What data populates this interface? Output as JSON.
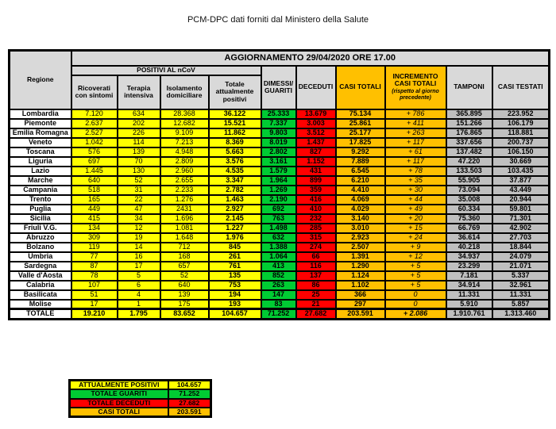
{
  "title": "PCM-DPC dati forniti dal Ministero della Salute",
  "colors": {
    "yellow": "#FFFF00",
    "green": "#00CC33",
    "red": "#FF0000",
    "orange": "#FFC000",
    "header-gray": "#D9D9D9",
    "cell-gray": "#BFBFBF",
    "border": "#000000"
  },
  "header": {
    "banner": "AGGIORNAMENTO 29/04/2020 ORE 17.00",
    "regione": "Regione",
    "positivi_group": "POSITIVI AL nCoV",
    "ricoverati": "Ricoverati con sintomi",
    "terapia": "Terapia intensiva",
    "isolamento": "Isolamento domiciliare",
    "totale_positivi": "Totale attualmente positivi",
    "dimessi": "DIMESSI/ GUARITI",
    "deceduti": "DECEDUTI",
    "casi_totali": "CASI TOTALI",
    "incremento": "INCREMENTO CASI TOTALI",
    "incremento_note": "(rispetto al giorno precedente)",
    "tamponi": "TAMPONI",
    "casi_testati": "CASI TESTATI"
  },
  "chart_data": {
    "type": "table",
    "title": "AGGIORNAMENTO 29/04/2020 ORE 17.00",
    "group_header": "POSITIVI AL nCoV",
    "columns": [
      "Regione",
      "Ricoverati con sintomi",
      "Terapia intensiva",
      "Isolamento domiciliare",
      "Totale attualmente positivi",
      "DIMESSI/GUARITI",
      "DECEDUTI",
      "CASI TOTALI",
      "INCREMENTO CASI TOTALI (rispetto al giorno precedente)",
      "TAMPONI",
      "CASI TESTATI"
    ],
    "rows": [
      [
        "Lombardia",
        "7.120",
        "634",
        "28.368",
        "36.122",
        "25.333",
        "13.679",
        "75.134",
        "+ 786",
        "365.895",
        "223.952"
      ],
      [
        "Piemonte",
        "2.637",
        "202",
        "12.682",
        "15.521",
        "7.337",
        "3.003",
        "25.861",
        "+ 411",
        "151.266",
        "106.179"
      ],
      [
        "Emilia Romagna",
        "2.527",
        "226",
        "9.109",
        "11.862",
        "9.803",
        "3.512",
        "25.177",
        "+ 263",
        "176.865",
        "118.881"
      ],
      [
        "Veneto",
        "1.042",
        "114",
        "7.213",
        "8.369",
        "8.019",
        "1.437",
        "17.825",
        "+ 117",
        "337.656",
        "200.737"
      ],
      [
        "Toscana",
        "576",
        "139",
        "4.948",
        "5.663",
        "2.802",
        "827",
        "9.292",
        "+ 61",
        "137.482",
        "106.150"
      ],
      [
        "Liguria",
        "697",
        "70",
        "2.809",
        "3.576",
        "3.161",
        "1.152",
        "7.889",
        "+ 117",
        "47.220",
        "30.669"
      ],
      [
        "Lazio",
        "1.445",
        "130",
        "2.960",
        "4.535",
        "1.579",
        "431",
        "6.545",
        "+ 78",
        "133.503",
        "103.435"
      ],
      [
        "Marche",
        "640",
        "52",
        "2.655",
        "3.347",
        "1.964",
        "899",
        "6.210",
        "+ 35",
        "55.905",
        "37.877"
      ],
      [
        "Campania",
        "518",
        "31",
        "2.233",
        "2.782",
        "1.269",
        "359",
        "4.410",
        "+ 30",
        "73.094",
        "43.449"
      ],
      [
        "Trento",
        "165",
        "22",
        "1.276",
        "1.463",
        "2.190",
        "416",
        "4.069",
        "+ 44",
        "35.008",
        "20.944"
      ],
      [
        "Puglia",
        "449",
        "47",
        "2431",
        "2.927",
        "692",
        "410",
        "4.029",
        "+ 49",
        "60.334",
        "59.801"
      ],
      [
        "Sicilia",
        "415",
        "34",
        "1.696",
        "2.145",
        "763",
        "232",
        "3.140",
        "+ 20",
        "75.360",
        "71.301"
      ],
      [
        "Friuli V.G.",
        "134",
        "12",
        "1.081",
        "1.227",
        "1.498",
        "285",
        "3.010",
        "+ 15",
        "66.769",
        "42.902"
      ],
      [
        "Abruzzo",
        "309",
        "19",
        "1.648",
        "1.976",
        "632",
        "315",
        "2.923",
        "+ 24",
        "36.614",
        "27.703"
      ],
      [
        "Bolzano",
        "119",
        "14",
        "712",
        "845",
        "1.388",
        "274",
        "2.507",
        "+ 9",
        "40.218",
        "18.844"
      ],
      [
        "Umbria",
        "77",
        "16",
        "168",
        "261",
        "1.064",
        "66",
        "1.391",
        "+ 12",
        "34.937",
        "24.079"
      ],
      [
        "Sardegna",
        "87",
        "17",
        "657",
        "761",
        "413",
        "116",
        "1.290",
        "+ 5",
        "23.299",
        "21.071"
      ],
      [
        "Valle d'Aosta",
        "78",
        "5",
        "52",
        "135",
        "852",
        "137",
        "1.124",
        "+ 5",
        "7.181",
        "5.337"
      ],
      [
        "Calabria",
        "107",
        "6",
        "640",
        "753",
        "263",
        "86",
        "1.102",
        "+ 5",
        "34.914",
        "32.961"
      ],
      [
        "Basilicata",
        "51",
        "4",
        "139",
        "194",
        "147",
        "25",
        "366",
        "0",
        "11.331",
        "11.331"
      ],
      [
        "Molise",
        "17",
        "1",
        "175",
        "193",
        "83",
        "21",
        "297",
        "0",
        "5.910",
        "5.857"
      ]
    ],
    "total_row": [
      "TOTALE",
      "19.210",
      "1.795",
      "83.652",
      "104.657",
      "71.252",
      "27.682",
      "203.591",
      "+ 2.086",
      "1.910.761",
      "1.313.460"
    ]
  },
  "summary": [
    {
      "label": "ATTUALMENTE POSITIVI",
      "value": "104.657",
      "color_key": "yellow"
    },
    {
      "label": "TOTALE GUARITI",
      "value": "71.252",
      "color_key": "green"
    },
    {
      "label": "TOTALE DECEDUTI",
      "value": "27.682",
      "color_key": "red"
    },
    {
      "label": "CASI TOTALI",
      "value": "203.591",
      "color_key": "orange"
    }
  ]
}
